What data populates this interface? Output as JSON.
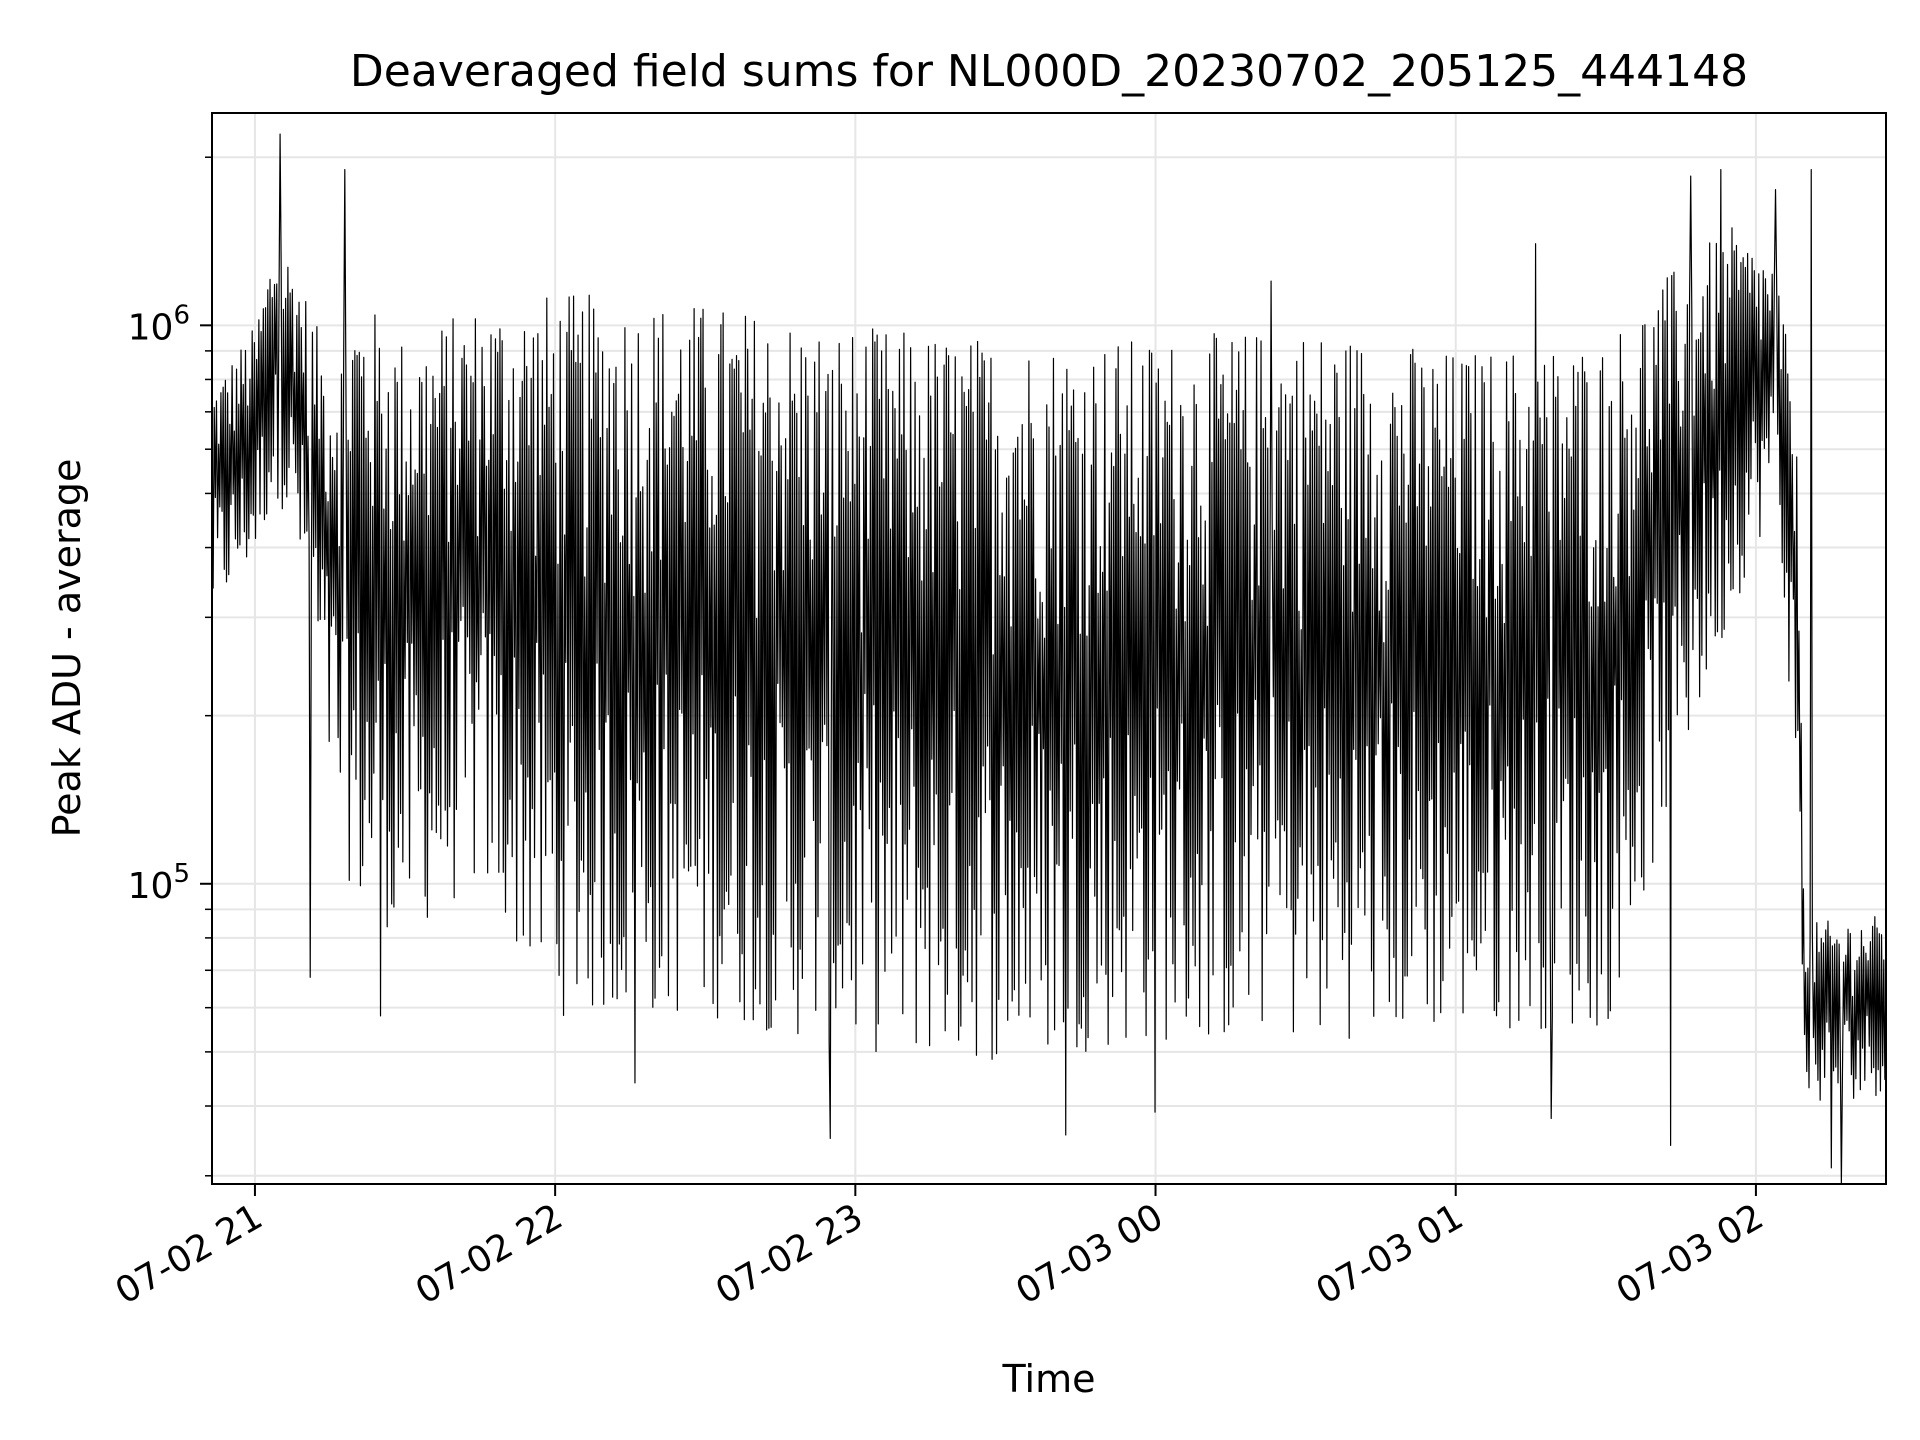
{
  "chart_data": {
    "type": "line",
    "title": "Deaveraged field sums for NL000D_20230702_205125_444148",
    "xlabel": "Time",
    "ylabel": "Peak ADU - average",
    "y_scale": "log",
    "grid": true,
    "legend": "none",
    "line_color": "#000000",
    "grid_color": "#e6e6e6",
    "xlim": [
      "2023-07-02 20:51:25",
      "2023-07-03 02:26:00"
    ],
    "ylim": [
      29000,
      2400000
    ],
    "x_ticks": [
      {
        "value": "2023-07-02 21:00",
        "label": "07-02 21"
      },
      {
        "value": "2023-07-02 22:00",
        "label": "07-02 22"
      },
      {
        "value": "2023-07-02 23:00",
        "label": "07-02 23"
      },
      {
        "value": "2023-07-03 00:00",
        "label": "07-03 00"
      },
      {
        "value": "2023-07-03 01:00",
        "label": "07-03 01"
      },
      {
        "value": "2023-07-03 02:00",
        "label": "07-03 02"
      }
    ],
    "y_ticks": [
      {
        "value": 100000,
        "base": "10",
        "exp": "5"
      },
      {
        "value": 1000000,
        "base": "10",
        "exp": "6"
      }
    ],
    "series": [
      {
        "x_start": "2023-07-02 20:51:25",
        "x_end": "2023-07-03 02:26:00",
        "envelope": [
          {
            "x": "2023-07-02 20:51:25",
            "low": 300000,
            "high": 780000
          },
          {
            "x": "2023-07-02 21:00",
            "low": 380000,
            "high": 1000000
          },
          {
            "x": "2023-07-02 21:04",
            "low": 500000,
            "high": 1450000
          },
          {
            "x": "2023-07-02 21:08",
            "low": 420000,
            "high": 1300000
          },
          {
            "x": "2023-07-02 21:15",
            "low": 150000,
            "high": 850000
          },
          {
            "x": "2023-07-02 21:20",
            "low": 90000,
            "high": 1150000
          },
          {
            "x": "2023-07-02 21:30",
            "low": 80000,
            "high": 950000
          },
          {
            "x": "2023-07-02 21:45",
            "low": 100000,
            "high": 1100000
          },
          {
            "x": "2023-07-02 22:00",
            "low": 58000,
            "high": 1150000
          },
          {
            "x": "2023-07-02 22:30",
            "low": 58000,
            "high": 1100000
          },
          {
            "x": "2023-07-02 23:00",
            "low": 50000,
            "high": 1000000
          },
          {
            "x": "2023-07-02 23:30",
            "low": 48000,
            "high": 950000
          },
          {
            "x": "2023-07-03 00:00",
            "low": 52000,
            "high": 950000
          },
          {
            "x": "2023-07-03 00:30",
            "low": 52000,
            "high": 1000000
          },
          {
            "x": "2023-07-03 01:00",
            "low": 55000,
            "high": 900000
          },
          {
            "x": "2023-07-03 01:30",
            "low": 55000,
            "high": 950000
          },
          {
            "x": "2023-07-03 01:45",
            "low": 160000,
            "high": 1300000
          },
          {
            "x": "2023-07-03 01:55",
            "low": 300000,
            "high": 1500000
          },
          {
            "x": "2023-07-03 02:04",
            "low": 500000,
            "high": 1300000
          },
          {
            "x": "2023-07-03 02:08",
            "low": 150000,
            "high": 700000
          },
          {
            "x": "2023-07-03 02:10",
            "low": 40000,
            "high": 85000
          },
          {
            "x": "2023-07-03 02:26",
            "low": 42000,
            "high": 88000
          }
        ],
        "spikes": [
          {
            "x": "2023-07-02 21:05",
            "value": 2200000
          },
          {
            "x": "2023-07-02 21:18",
            "value": 1900000
          },
          {
            "x": "2023-07-02 21:11",
            "value": 68000
          },
          {
            "x": "2023-07-02 21:25",
            "value": 58000
          },
          {
            "x": "2023-07-02 22:16",
            "value": 44000
          },
          {
            "x": "2023-07-02 22:55",
            "value": 35000
          },
          {
            "x": "2023-07-02 23:42",
            "value": 35500
          },
          {
            "x": "2023-07-03 00:00",
            "value": 39000
          },
          {
            "x": "2023-07-03 00:23",
            "value": 1200000
          },
          {
            "x": "2023-07-03 01:16",
            "value": 1400000
          },
          {
            "x": "2023-07-03 01:19",
            "value": 38000
          },
          {
            "x": "2023-07-03 01:43",
            "value": 34000
          },
          {
            "x": "2023-07-03 01:47",
            "value": 1850000
          },
          {
            "x": "2023-07-03 01:53",
            "value": 1900000
          },
          {
            "x": "2023-07-03 02:04",
            "value": 1750000
          },
          {
            "x": "2023-07-03 02:11",
            "value": 1900000
          },
          {
            "x": "2023-07-03 02:15",
            "value": 31000
          },
          {
            "x": "2023-07-03 02:17",
            "value": 29000
          }
        ]
      }
    ]
  }
}
